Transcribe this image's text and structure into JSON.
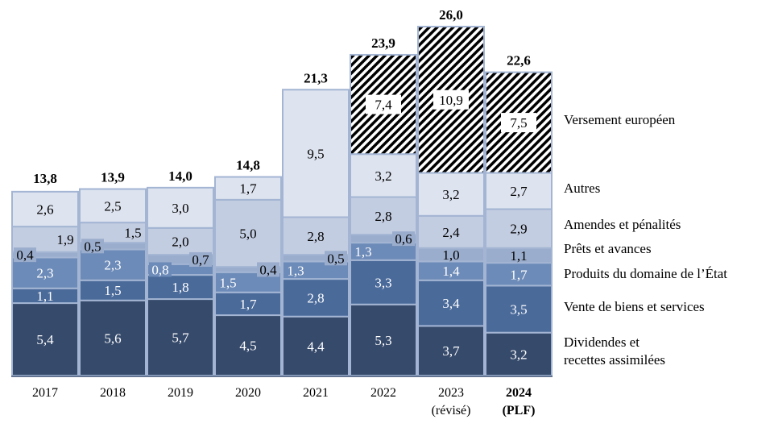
{
  "chart_data": {
    "type": "bar",
    "stacked": true,
    "title": "",
    "xlabel": "",
    "ylabel": "",
    "ylim": [
      0,
      26
    ],
    "grid": false,
    "legend_placement": "right",
    "categories": [
      "2017",
      "2018",
      "2019",
      "2020",
      "2021",
      "2022",
      "2023",
      "2024"
    ],
    "category_sublabels": [
      "",
      "",
      "",
      "",
      "",
      "",
      "(révisé)",
      "(PLF)"
    ],
    "totals": [
      "13,8",
      "13,9",
      "14,0",
      "14,8",
      "21,3",
      "23,9",
      "26,0",
      "22,6"
    ],
    "total_values": [
      13.8,
      13.9,
      14.0,
      14.8,
      21.3,
      23.9,
      26.0,
      22.6
    ],
    "series": [
      {
        "name": "Dividendes et recettes assimilées",
        "name_lines": [
          "Dividendes et",
          "recettes assimilées"
        ],
        "color": "#364a6b",
        "values": [
          5.4,
          5.6,
          5.7,
          4.5,
          4.4,
          5.3,
          3.7,
          3.2
        ]
      },
      {
        "name": "Vente de biens et services",
        "name_lines": [
          "Vente de biens et services"
        ],
        "color": "#4a6a9a",
        "values": [
          1.1,
          1.5,
          1.8,
          1.7,
          2.8,
          3.3,
          3.4,
          3.5
        ]
      },
      {
        "name": "Produits du domaine de l’État",
        "name_lines": [
          "Produits du domaine de l’État"
        ],
        "color": "#6d8bb8",
        "values": [
          2.3,
          2.3,
          0.8,
          1.5,
          1.3,
          1.3,
          1.4,
          1.7
        ]
      },
      {
        "name": "Prêts et avances",
        "name_lines": [
          "Prêts et avances"
        ],
        "color": "#9badcd",
        "values": [
          0.4,
          0.5,
          0.7,
          0.4,
          0.5,
          0.6,
          1.0,
          1.1
        ]
      },
      {
        "name": "Amendes et pénalités",
        "name_lines": [
          "Amendes et pénalités"
        ],
        "color": "#c3cde1",
        "values": [
          1.9,
          1.5,
          2.0,
          5.0,
          2.8,
          2.8,
          2.4,
          2.9
        ]
      },
      {
        "name": "Autres",
        "name_lines": [
          "Autres"
        ],
        "color": "#dde3ef",
        "values": [
          2.6,
          2.5,
          3.0,
          1.7,
          9.5,
          3.2,
          3.2,
          2.7
        ]
      },
      {
        "name": "Versement européen",
        "name_lines": [
          "Versement européen"
        ],
        "color": "hatch",
        "values": [
          null,
          null,
          null,
          null,
          null,
          7.4,
          10.9,
          7.5
        ]
      }
    ]
  }
}
